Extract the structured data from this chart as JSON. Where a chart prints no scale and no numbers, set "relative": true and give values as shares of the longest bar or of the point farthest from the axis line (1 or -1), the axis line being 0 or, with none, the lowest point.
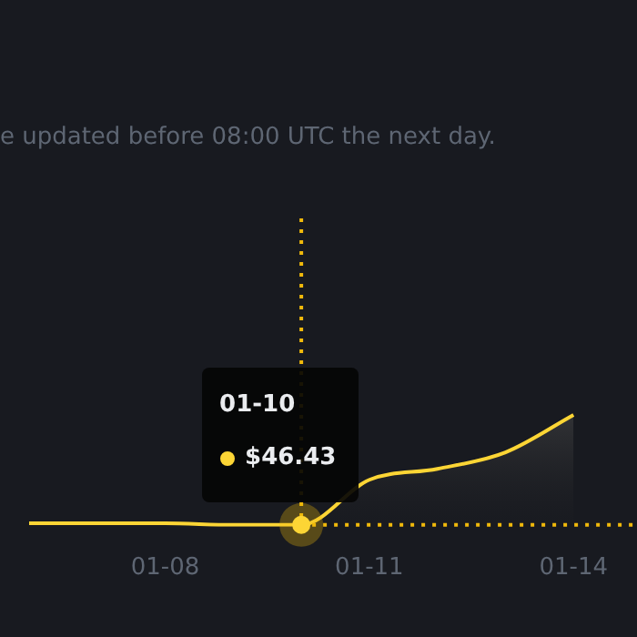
{
  "chart_data": {
    "type": "area",
    "subtitle": "e updated before 08:00 UTC the next day.",
    "categories": [
      null,
      null,
      "01-08",
      null,
      null,
      "01-11",
      null,
      null,
      "01-14"
    ],
    "relative": true,
    "series": [
      {
        "color": "#fcd535",
        "values": [
          0.015,
          0.015,
          0.015,
          0,
          0,
          0.41,
          0.51,
          0.66,
          1
        ]
      }
    ],
    "ref_lines": [
      {
        "axis": "y",
        "value": 0,
        "color": "#f0b90b",
        "line_style": "dotted"
      }
    ],
    "annotations": [
      "01-10",
      "$46.43"
    ],
    "legend": false,
    "marker": "none"
  }
}
